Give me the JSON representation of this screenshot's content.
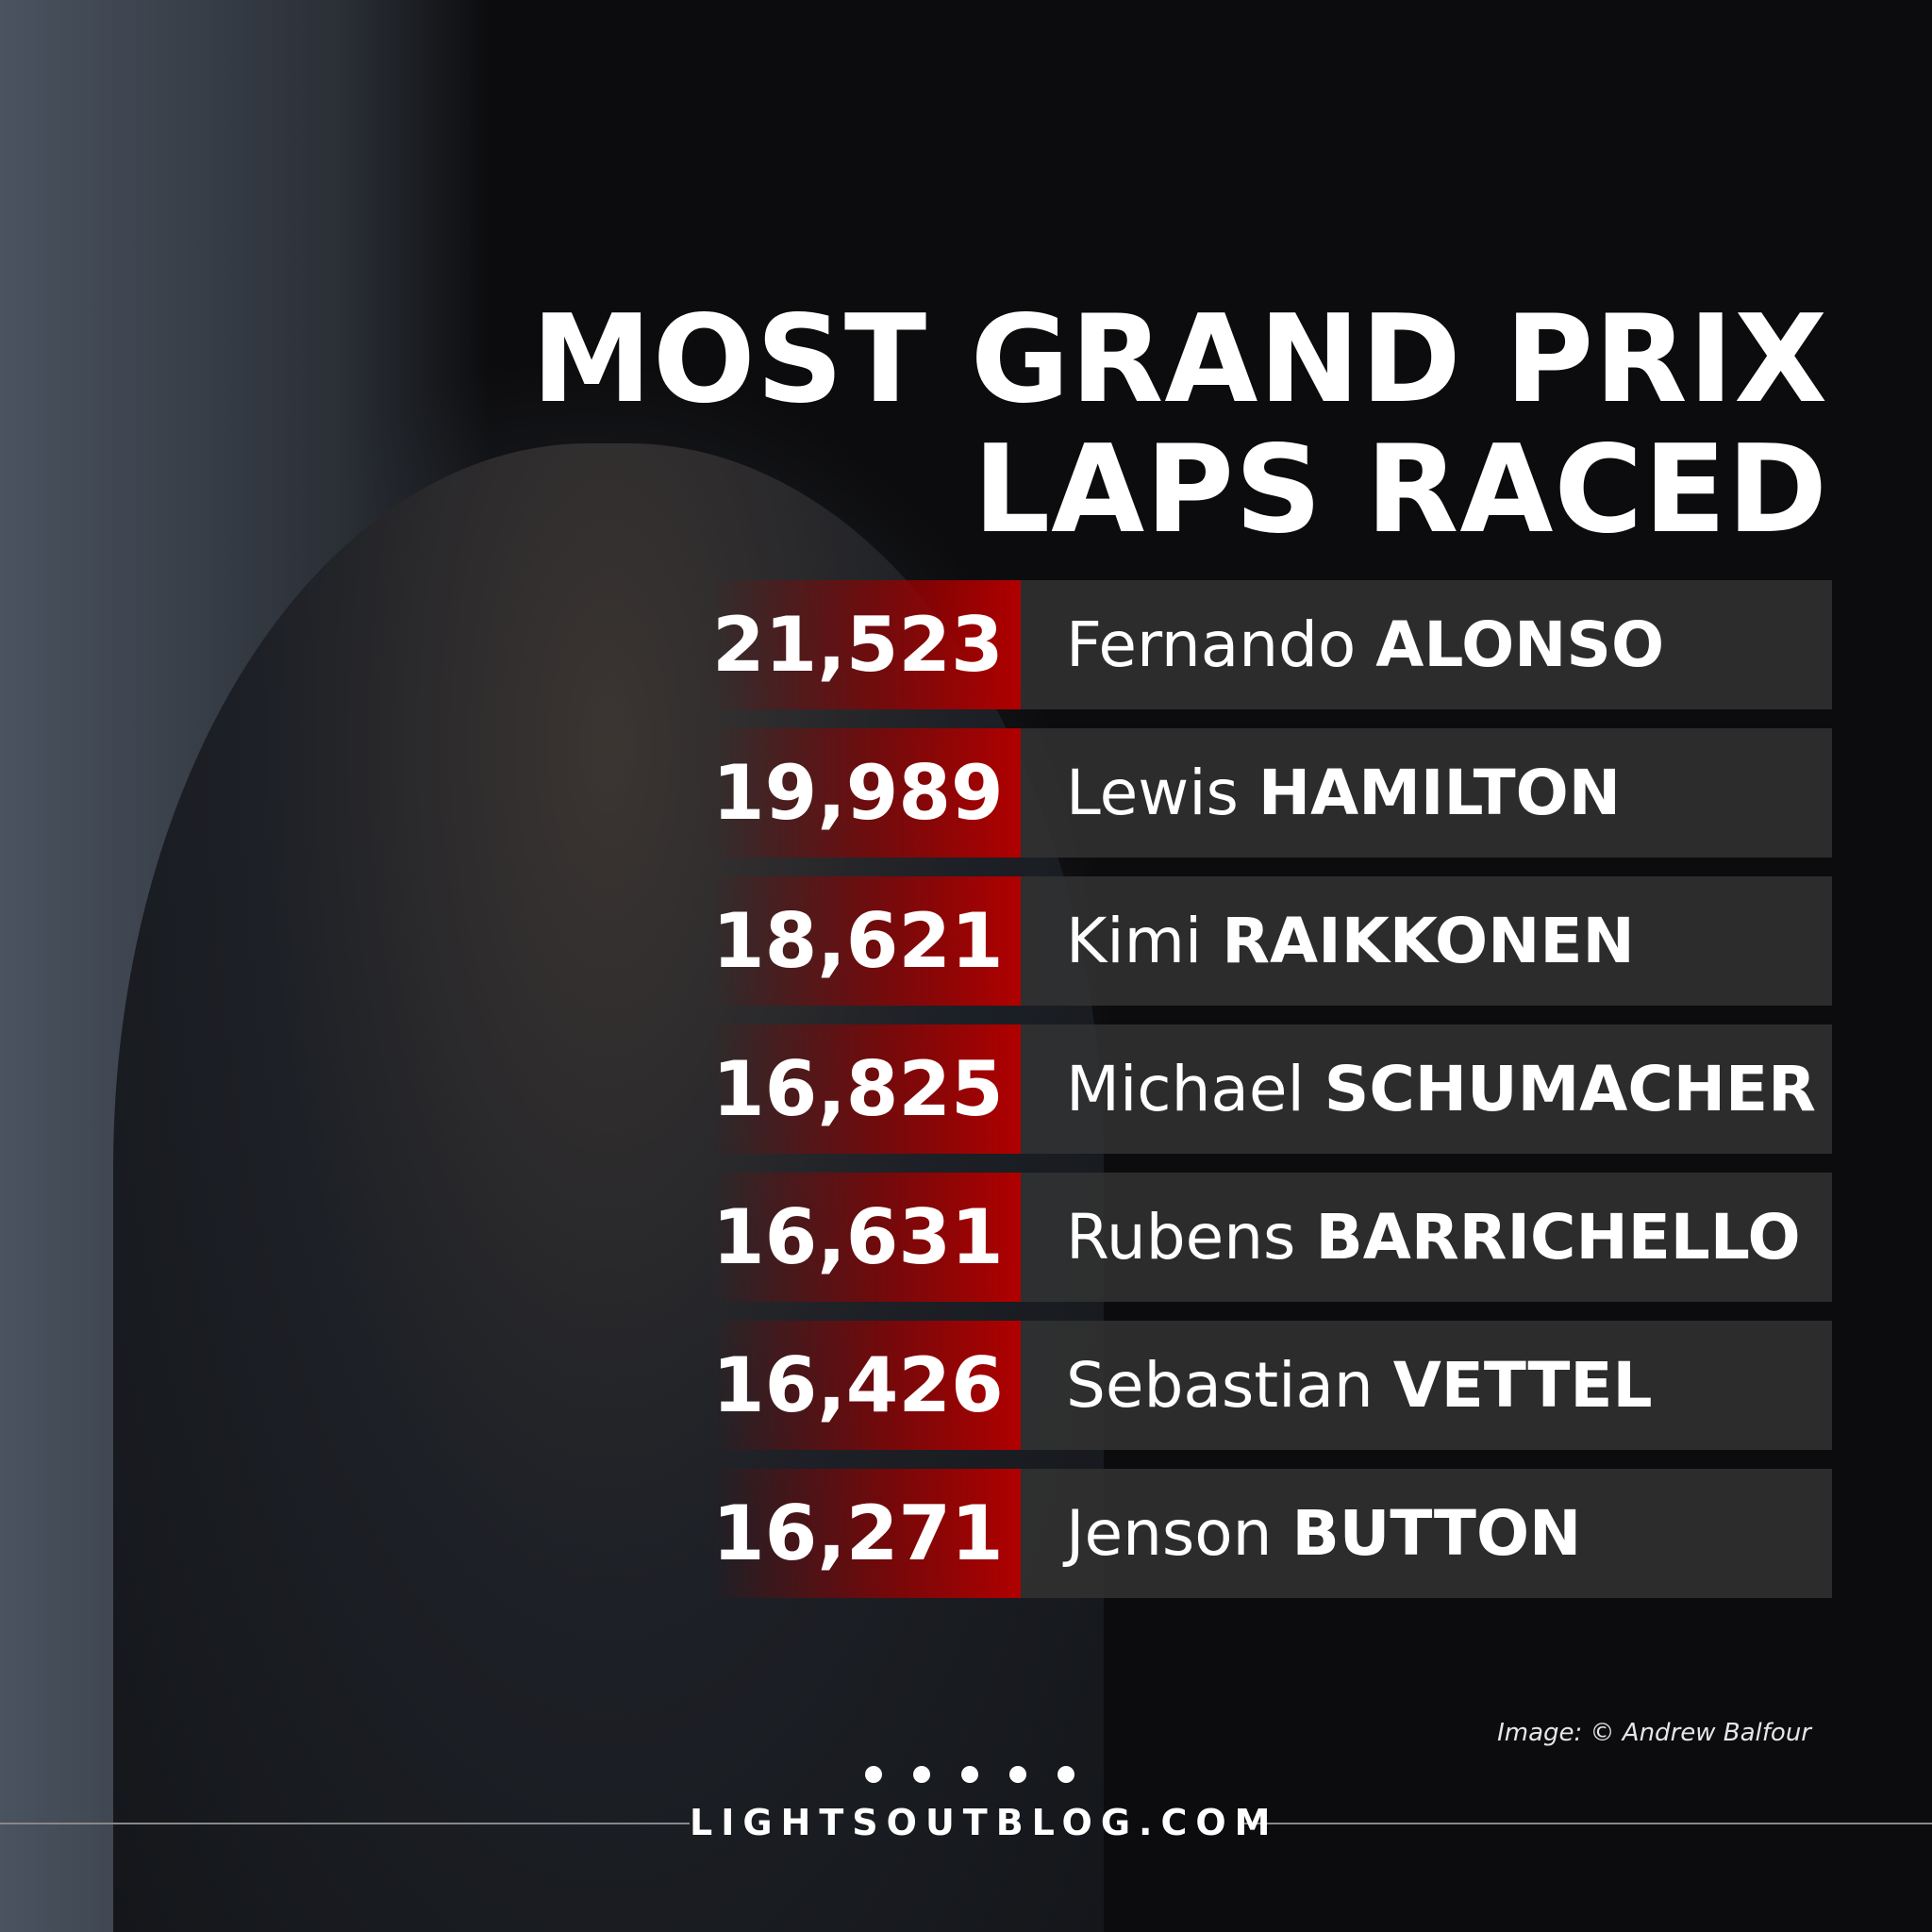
{
  "title": [
    "MOST GRAND PRIX",
    "LAPS RACED"
  ],
  "rows": [
    {
      "laps": "21,523",
      "first": "Fernando",
      "last": "ALONSO"
    },
    {
      "laps": "19,989",
      "first": "Lewis",
      "last": "HAMILTON"
    },
    {
      "laps": "18,621",
      "first": "Kimi",
      "last": "RAIKKONEN"
    },
    {
      "laps": "16,825",
      "first": "Michael",
      "last": "SCHUMACHER"
    },
    {
      "laps": "16,631",
      "first": "Rubens",
      "last": "BARRICHELLO"
    },
    {
      "laps": "16,426",
      "first": "Sebastian",
      "last": "VETTEL"
    },
    {
      "laps": "16,271",
      "first": "Jenson",
      "last": "BUTTON"
    }
  ],
  "credit": "Image: © Andrew Balfour",
  "site": "LIGHTSOUTBLOG.COM"
}
